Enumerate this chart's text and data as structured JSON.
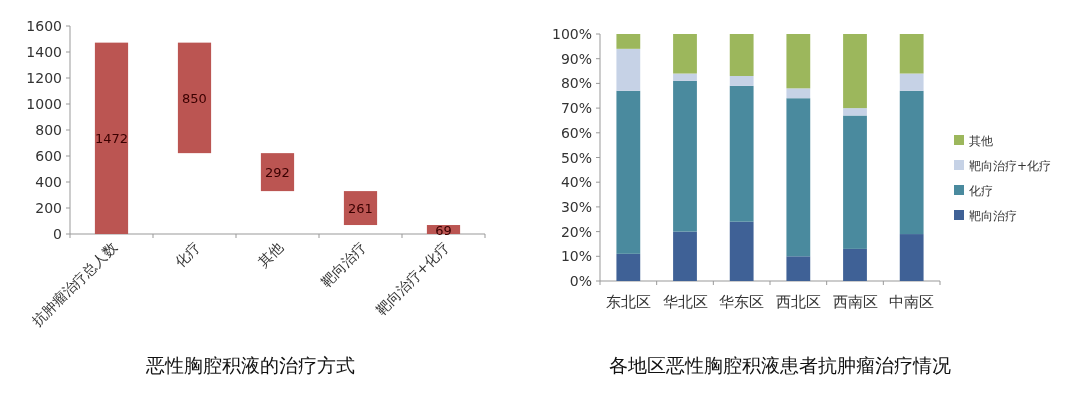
{
  "chart_data": [
    {
      "type": "bar",
      "title": "恶性胸腔积液的治疗方式",
      "categories": [
        "抗肿瘤治疗总人数",
        "化疗",
        "其他",
        "靶向治疗",
        "靶向治疗+化疗"
      ],
      "values": [
        1472,
        850,
        292,
        261,
        69
      ],
      "base": [
        0,
        622,
        330,
        69,
        0
      ],
      "color": "#bb5552",
      "data_labels": true,
      "ylim": [
        0,
        1600
      ],
      "yticks": [
        0,
        200,
        400,
        600,
        800,
        1000,
        1200,
        1400,
        1600
      ],
      "grid": false,
      "legend": false
    },
    {
      "type": "bar",
      "title": "各地区恶性胸腔积液患者抗肿瘤治疗情况",
      "categories": [
        "东北区",
        "华北区",
        "华东区",
        "西北区",
        "西南区",
        "中南区"
      ],
      "stacked": true,
      "series": [
        {
          "name": "靶向治疗",
          "color": "#3f6196",
          "values": [
            11,
            20,
            24,
            10,
            13,
            19
          ]
        },
        {
          "name": "化疗",
          "color": "#4a8a9e",
          "values": [
            66,
            61,
            55,
            64,
            54,
            58
          ]
        },
        {
          "name": "靶向治疗+化疗",
          "color": "#c6d2e6",
          "values": [
            17,
            3,
            4,
            4,
            3,
            7
          ]
        },
        {
          "name": "其他",
          "color": "#9cb75c",
          "values": [
            6,
            16,
            17,
            22,
            30,
            16
          ]
        }
      ],
      "ylim": [
        0,
        100
      ],
      "yticks": [
        {
          "value": 0,
          "label": "0%"
        },
        {
          "value": 10,
          "label": "10%"
        },
        {
          "value": 20,
          "label": "20%"
        },
        {
          "value": 30,
          "label": "30%"
        },
        {
          "value": 40,
          "label": "40%"
        },
        {
          "value": 50,
          "label": "50%"
        },
        {
          "value": 60,
          "label": "60%"
        },
        {
          "value": 70,
          "label": "70%"
        },
        {
          "value": 80,
          "label": "80%"
        },
        {
          "value": 90,
          "label": "90%"
        },
        {
          "value": 100,
          "label": "100%"
        }
      ],
      "grid": false,
      "legend": "right"
    }
  ]
}
